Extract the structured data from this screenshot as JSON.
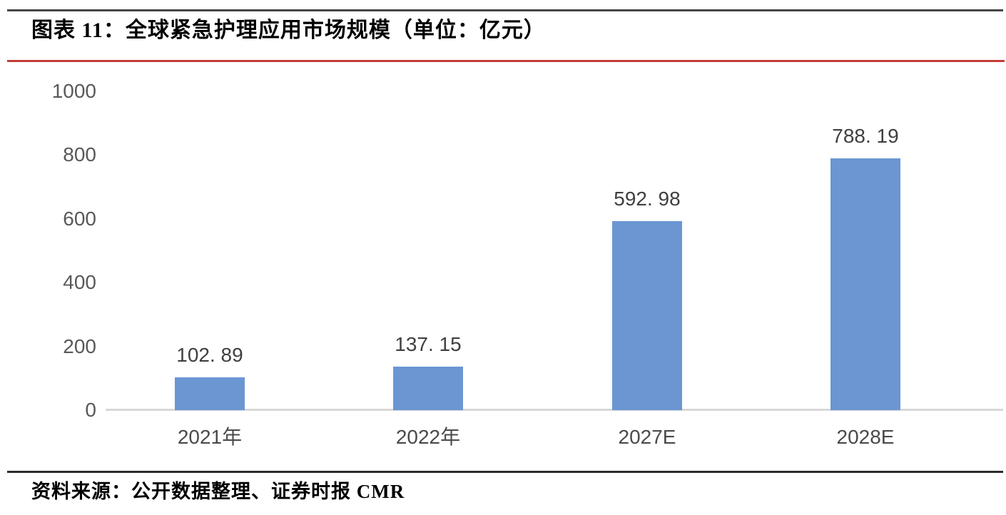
{
  "title": "图表 11：全球紧急护理应用市场规模（单位：亿元）",
  "source": "资料来源：公开数据整理、证券时报 CMR",
  "colors": {
    "bar": "#6B96D2",
    "rule_top": "#454545",
    "rule_red": "#C23C37",
    "rule_bottom": "#2B2B2B",
    "axis_line": "#D8D8D8",
    "tick_text": "#595959",
    "data_label_text": "#3F3F3F",
    "title_text": "#000000"
  },
  "chart_data": {
    "type": "bar",
    "title": "全球紧急护理应用市场规模",
    "unit": "亿元",
    "categories": [
      "2021年",
      "2022年",
      "2027E",
      "2028E"
    ],
    "values": [
      102.89,
      137.15,
      592.98,
      788.19
    ],
    "data_labels": [
      "102. 89",
      "137. 15",
      "592. 98",
      "788. 19"
    ],
    "xlabel": "",
    "ylabel": "",
    "ylim": [
      0,
      1000
    ],
    "yticks": [
      0,
      200,
      400,
      600,
      800,
      1000
    ],
    "grid": false,
    "legend": false
  }
}
